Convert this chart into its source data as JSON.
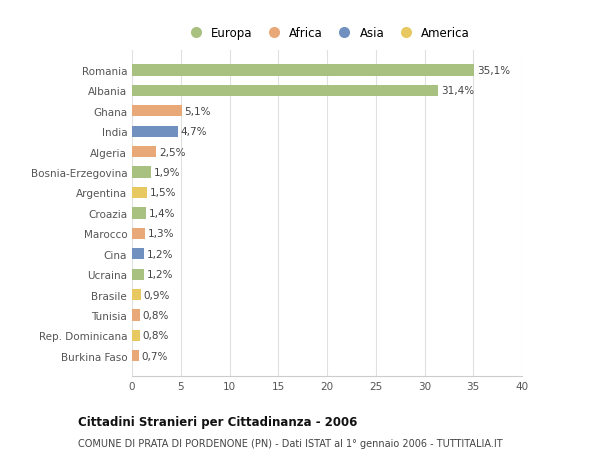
{
  "countries": [
    "Romania",
    "Albania",
    "Ghana",
    "India",
    "Algeria",
    "Bosnia-Erzegovina",
    "Argentina",
    "Croazia",
    "Marocco",
    "Cina",
    "Ucraina",
    "Brasile",
    "Tunisia",
    "Rep. Dominicana",
    "Burkina Faso"
  ],
  "values": [
    35.1,
    31.4,
    5.1,
    4.7,
    2.5,
    1.9,
    1.5,
    1.4,
    1.3,
    1.2,
    1.2,
    0.9,
    0.8,
    0.8,
    0.7
  ],
  "labels": [
    "35,1%",
    "31,4%",
    "5,1%",
    "4,7%",
    "2,5%",
    "1,9%",
    "1,5%",
    "1,4%",
    "1,3%",
    "1,2%",
    "1,2%",
    "0,9%",
    "0,8%",
    "0,8%",
    "0,7%"
  ],
  "bar_colors": [
    "#a8c080",
    "#a8c080",
    "#e8a878",
    "#7090c0",
    "#e8a878",
    "#a8c080",
    "#e8c860",
    "#a8c080",
    "#e8a878",
    "#7090c0",
    "#a8c080",
    "#e8c860",
    "#e8a878",
    "#e8c860",
    "#e8a878"
  ],
  "legend_labels": [
    "Europa",
    "Africa",
    "Asia",
    "America"
  ],
  "legend_colors": [
    "#a8c080",
    "#e8a878",
    "#7090c0",
    "#e8c860"
  ],
  "title": "Cittadini Stranieri per Cittadinanza - 2006",
  "subtitle": "COMUNE DI PRATA DI PORDENONE (PN) - Dati ISTAT al 1° gennaio 2006 - TUTTITALIA.IT",
  "xlim": [
    0,
    40
  ],
  "xticks": [
    0,
    5,
    10,
    15,
    20,
    25,
    30,
    35,
    40
  ],
  "background_color": "#ffffff",
  "plot_background": "#ffffff",
  "grid_color": "#e0e0e0"
}
